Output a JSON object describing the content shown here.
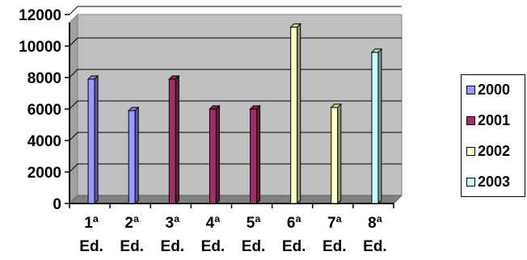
{
  "chart_data": {
    "type": "bar",
    "categories": [
      "1ª Ed.",
      "2ª Ed.",
      "3ª Ed.",
      "4ª Ed.",
      "5ª Ed.",
      "6ª Ed.",
      "7ª Ed.",
      "8ª Ed."
    ],
    "x_tick_lines": [
      [
        "1ª",
        "Ed."
      ],
      [
        "2ª",
        "Ed."
      ],
      [
        "3ª",
        "Ed."
      ],
      [
        "4ª",
        "Ed."
      ],
      [
        "5ª",
        "Ed."
      ],
      [
        "6ª",
        "Ed."
      ],
      [
        "7ª",
        "Ed."
      ],
      [
        "8ª",
        "Ed."
      ]
    ],
    "values": [
      7900,
      5900,
      7900,
      6000,
      6000,
      11200,
      6100,
      9600
    ],
    "bar_series": [
      "2000",
      "2000",
      "2001",
      "2001",
      "2001",
      "2002",
      "2002",
      "2003"
    ],
    "series": [
      {
        "name": "2000",
        "color": "#9999ff"
      },
      {
        "name": "2001",
        "color": "#993366"
      },
      {
        "name": "2002",
        "color": "#ffffcc"
      },
      {
        "name": "2003",
        "color": "#ccffff"
      }
    ],
    "y_ticks": [
      "0",
      "2000",
      "4000",
      "6000",
      "8000",
      "10000",
      "12000"
    ],
    "ylim": [
      0,
      12000
    ],
    "title": "",
    "xlabel": "",
    "ylabel": "",
    "grid": true,
    "legend_position": "right",
    "plot_background": "#c0c0c0"
  }
}
